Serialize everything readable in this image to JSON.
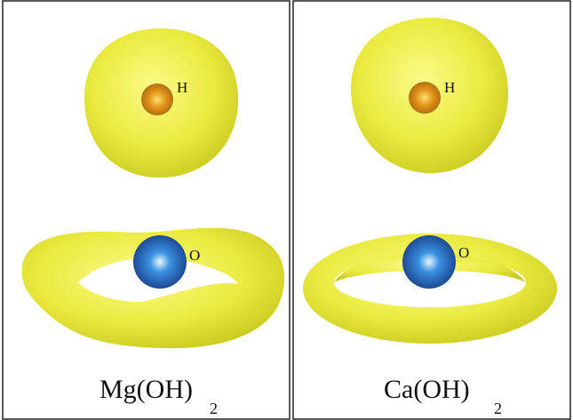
{
  "panels": [
    {
      "caption": "Mg(OH)",
      "subscript": "2",
      "atoms": [
        {
          "label": "H"
        },
        {
          "label": "O"
        }
      ]
    },
    {
      "caption": "Ca(OH)",
      "subscript": "2",
      "atoms": [
        {
          "label": "H"
        },
        {
          "label": "O"
        }
      ]
    }
  ]
}
